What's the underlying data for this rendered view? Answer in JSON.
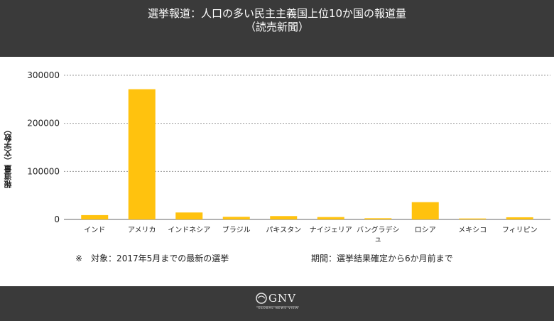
{
  "header": {
    "title_line1": "選挙報道：人口の多い民主主義国上位10か国の報道量",
    "title_line2": "（読売新聞）"
  },
  "chart_data": {
    "type": "bar",
    "categories": [
      "インド",
      "アメリカ",
      "インドネシア",
      "ブラジル",
      "パキスタン",
      "ナイジェリア",
      "バングラデシュ",
      "ロシア",
      "メキシコ",
      "フィリピン"
    ],
    "values": [
      9000,
      271000,
      14500,
      5500,
      7000,
      5000,
      2500,
      36000,
      2000,
      4500
    ],
    "ylabel": "報道量（文字数）",
    "xlabel": "",
    "ylim": [
      0,
      300000
    ],
    "yticks": [
      0,
      100000,
      200000,
      300000
    ],
    "ytick_labels": [
      "0",
      "100000",
      "200000",
      "300000"
    ],
    "bar_color": "#ffc20e",
    "grid": true
  },
  "notes": {
    "left": "※　対象：2017年5月までの最新の選挙",
    "right": "期間：選挙結果確定から6か月前まで"
  },
  "footer": {
    "logo_text": "GNV",
    "logo_subtext": "GLOBAL NEWS VIEW"
  },
  "colors": {
    "header_bg": "#3a3a3a",
    "bar": "#ffc20e",
    "grid": "#999999"
  }
}
